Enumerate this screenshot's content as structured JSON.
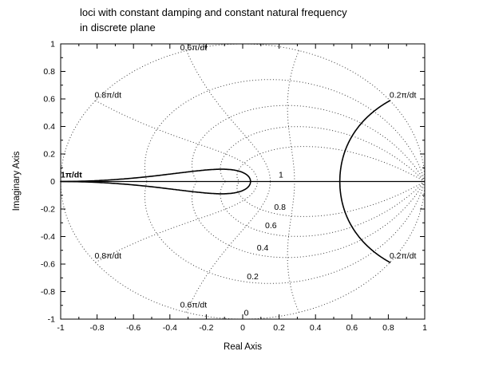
{
  "title": {
    "line1": "loci with constant damping and constant natural frequency",
    "line2": "in discrete plane"
  },
  "axes": {
    "xlabel": "Real Axis",
    "ylabel": "Imaginary Axis",
    "xlim": [
      -1,
      1
    ],
    "ylim": [
      -1,
      1
    ],
    "minor_tick_step": 0.1,
    "xticks": {
      "values": [
        -1,
        -0.8,
        -0.6,
        -0.4,
        -0.2,
        0,
        0.2,
        0.4,
        0.6,
        0.8,
        1
      ],
      "labels": [
        "-1",
        "-0.8",
        "-0.6",
        "-0.4",
        "-0.2",
        "0",
        "0.2",
        "0.4",
        "0.6",
        "0.8",
        "1"
      ]
    },
    "yticks": {
      "values": [
        -1,
        -0.8,
        -0.6,
        -0.4,
        -0.2,
        0,
        0.2,
        0.4,
        0.6,
        0.8,
        1
      ],
      "labels": [
        "-1",
        "-0.8",
        "-0.6",
        "-0.4",
        "-0.2",
        "0",
        "0.2",
        "0.4",
        "0.6",
        "0.8",
        "1"
      ]
    }
  },
  "chart_data": {
    "type": "line",
    "title": "loci with constant damping and constant natural frequency in discrete plane",
    "xlabel": "Real Axis",
    "ylabel": "Imaginary Axis",
    "xlim": [
      -1,
      1
    ],
    "ylim": [
      -1,
      1
    ],
    "grid": "z-plane grid (zgrid): logarithmic spirals of constant damping ratio and arcs of constant natural frequency inside the unit circle",
    "unit_circle": {
      "style": "dotted",
      "radius": 1,
      "zeta": 0
    },
    "constant_damping_loci": {
      "style": "dotted",
      "zeta_values": [
        0,
        0.2,
        0.4,
        0.6,
        0.8
      ],
      "zeta_solid_values": [
        1
      ],
      "labels": [
        {
          "text": "1",
          "x": 0.21,
          "y": 0.05
        },
        {
          "text": "0.8",
          "x": 0.205,
          "y": -0.185
        },
        {
          "text": "0.6",
          "x": 0.155,
          "y": -0.32
        },
        {
          "text": "0.4",
          "x": 0.11,
          "y": -0.48
        },
        {
          "text": "0.2",
          "x": 0.055,
          "y": -0.69
        },
        {
          "text": "0",
          "x": 0.02,
          "y": -0.955
        }
      ]
    },
    "constant_frequency_loci": {
      "dotted_wn_pi_per_dt": [
        0.4,
        0.6,
        0.8
      ],
      "solid_wn_pi_per_dt": [
        0.2,
        1.0
      ],
      "labels": [
        {
          "text": "0.2π/dt",
          "x": 0.88,
          "y": 0.63
        },
        {
          "text": "0.2π/dt",
          "x": 0.88,
          "y": -0.54
        },
        {
          "text": "0.6π/dt",
          "x": -0.27,
          "y": 0.975
        },
        {
          "text": "0.6π/dt",
          "x": -0.27,
          "y": -0.895
        },
        {
          "text": "0.8π/dt",
          "x": -0.74,
          "y": 0.63
        },
        {
          "text": "0.8π/dt",
          "x": -0.74,
          "y": -0.54
        },
        {
          "text": "1π/dt",
          "x": -1.0,
          "y": 0.05,
          "bold": true,
          "anchor": "start"
        }
      ]
    },
    "real_axis_line": {
      "style": "solid",
      "from": [
        -1,
        0
      ],
      "to": [
        1,
        0
      ]
    },
    "colors": {
      "solid_curves": "#000000",
      "dotted_curves": "#3d3d3d",
      "axis": "#000000",
      "text": "#000000",
      "background": "#ffffff"
    }
  }
}
